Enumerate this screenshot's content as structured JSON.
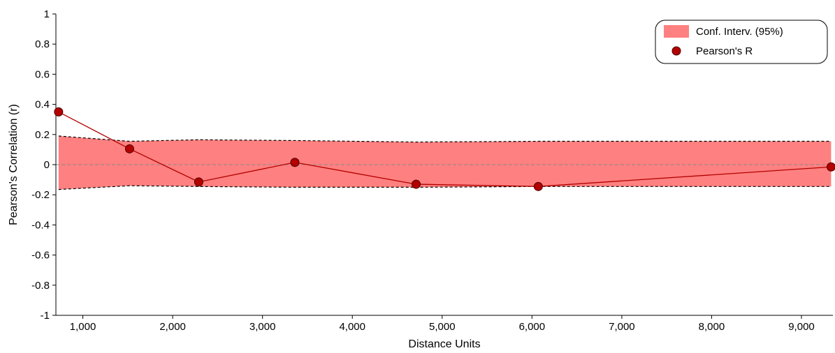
{
  "chart_data": {
    "type": "line",
    "title": "",
    "xlabel": "Distance Units",
    "ylabel": "Pearson's Correlation (r)",
    "xlim": [
      700,
      9350
    ],
    "ylim": [
      -1,
      1
    ],
    "x_ticks": [
      1000,
      2000,
      3000,
      4000,
      5000,
      6000,
      7000,
      8000,
      9000
    ],
    "x_tick_labels": [
      "1,000",
      "2,000",
      "3,000",
      "4,000",
      "5,000",
      "6,000",
      "7,000",
      "8,000",
      "9,000"
    ],
    "y_ticks": [
      1,
      0.8,
      0.6,
      0.4,
      0.2,
      0,
      -0.2,
      -0.4,
      -0.6,
      -0.8,
      -1
    ],
    "y_tick_labels": [
      "1",
      "0.8",
      "0.6",
      "0.4",
      "0.2",
      "0",
      "-0.2",
      "-0.4",
      "-0.6",
      "-0.8",
      "-1"
    ],
    "zero_line": true,
    "grid": false,
    "legend_position": "top-right",
    "series": [
      {
        "name": "Pearson's R",
        "type": "line-markers",
        "color": "#b30000",
        "x": [
          730,
          1520,
          2290,
          3360,
          4710,
          6070,
          9330
        ],
        "y": [
          0.35,
          0.105,
          -0.115,
          0.015,
          -0.13,
          -0.145,
          -0.015
        ]
      },
      {
        "name": "Conf. Interv. (95%)",
        "type": "band",
        "color": "#ff8080",
        "x": [
          730,
          1520,
          2290,
          3360,
          4710,
          6070,
          9330
        ],
        "upper": [
          0.19,
          0.155,
          0.165,
          0.16,
          0.15,
          0.155,
          0.155
        ],
        "lower": [
          -0.165,
          -0.14,
          -0.145,
          -0.15,
          -0.15,
          -0.145,
          -0.145
        ]
      }
    ]
  }
}
